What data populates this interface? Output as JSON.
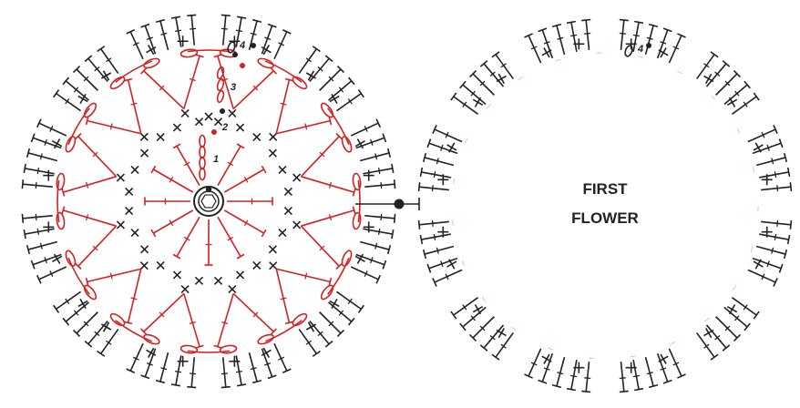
{
  "diagram": {
    "first_flower_label": [
      "FIRST",
      "FLOWER"
    ],
    "round_numbers": [
      "1",
      "2",
      "3",
      "4"
    ],
    "second_flower_round_label": "4",
    "petal_count": 12,
    "symbols": {
      "chain": "chain-oval",
      "single_crochet": "x-stitch",
      "double_crochet": "t-stitch",
      "slip_stitch": "filled-dot",
      "magic_ring": "double-circle"
    },
    "colors": {
      "ink": "#222222",
      "accent": "#d42020"
    }
  }
}
